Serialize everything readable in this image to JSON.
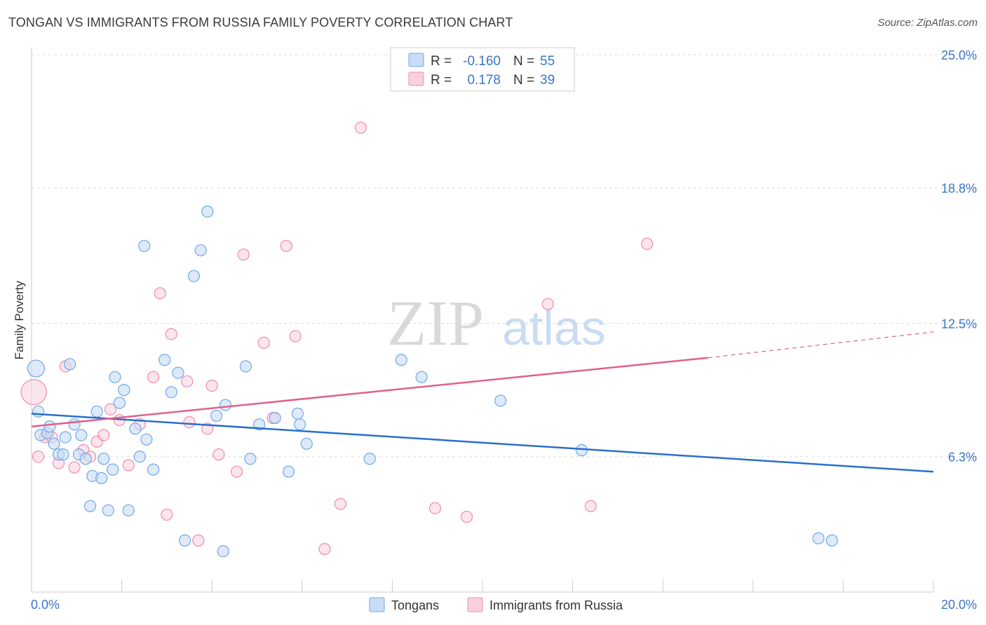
{
  "title": "TONGAN VS IMMIGRANTS FROM RUSSIA FAMILY POVERTY CORRELATION CHART",
  "source": "Source: ZipAtlas.com",
  "watermark": {
    "zip": "ZIP",
    "atlas": "atlas"
  },
  "colors": {
    "tongans": "#6fa8e8",
    "tongans_fill": "#c8dcf5",
    "tongans_line": "#2a6fcc",
    "russia": "#f08cab",
    "russia_fill": "#fad0de",
    "russia_line": "#e0608c",
    "axis_text": "#3a76c8",
    "grid": "#dddddd"
  },
  "legend_top": {
    "rows": [
      {
        "r_label": "R = ",
        "r_value": "-0.160",
        "n_label": "N = ",
        "n_value": "55"
      },
      {
        "r_label": "R = ",
        "r_value": "0.178",
        "n_label": "N = ",
        "n_value": "39"
      }
    ]
  },
  "legend_bottom": {
    "items": [
      "Tongans",
      "Immigrants from Russia"
    ]
  },
  "chart_data": {
    "type": "scatter",
    "title": "TONGAN VS IMMIGRANTS FROM RUSSIA FAMILY POVERTY CORRELATION CHART",
    "xlabel": "",
    "ylabel": "Family Poverty",
    "xlim": [
      0,
      20
    ],
    "ylim": [
      0,
      25.0
    ],
    "x_tick_labels": [
      "0.0%",
      "20.0%"
    ],
    "y_ticks": [
      6.3,
      12.5,
      18.8,
      25.0
    ],
    "y_tick_labels": [
      "6.3%",
      "12.5%",
      "18.8%",
      "25.0%"
    ],
    "grid": "horizontal dashed",
    "legend": "top-center and bottom-center",
    "series": [
      {
        "name": "Tongans",
        "r": -0.16,
        "n": 55,
        "trend": {
          "x": [
            0,
            20
          ],
          "y": [
            8.3,
            5.6
          ]
        },
        "points": [
          [
            0.1,
            10.4
          ],
          [
            0.15,
            8.4
          ],
          [
            0.2,
            7.3
          ],
          [
            0.35,
            7.4
          ],
          [
            0.4,
            7.7
          ],
          [
            0.5,
            6.9
          ],
          [
            0.6,
            6.4
          ],
          [
            0.7,
            6.4
          ],
          [
            0.75,
            7.2
          ],
          [
            0.85,
            10.6
          ],
          [
            0.95,
            7.8
          ],
          [
            1.05,
            6.4
          ],
          [
            1.1,
            7.3
          ],
          [
            1.2,
            6.2
          ],
          [
            1.3,
            4.0
          ],
          [
            1.35,
            5.4
          ],
          [
            1.45,
            8.4
          ],
          [
            1.55,
            5.3
          ],
          [
            1.6,
            6.2
          ],
          [
            1.7,
            3.8
          ],
          [
            1.8,
            5.7
          ],
          [
            1.85,
            10.0
          ],
          [
            1.95,
            8.8
          ],
          [
            2.05,
            9.4
          ],
          [
            2.15,
            3.8
          ],
          [
            2.3,
            7.6
          ],
          [
            2.4,
            6.3
          ],
          [
            2.5,
            16.1
          ],
          [
            2.55,
            7.1
          ],
          [
            2.7,
            5.7
          ],
          [
            2.95,
            10.8
          ],
          [
            3.1,
            9.3
          ],
          [
            3.25,
            10.2
          ],
          [
            3.4,
            2.4
          ],
          [
            3.6,
            14.7
          ],
          [
            3.75,
            15.9
          ],
          [
            3.9,
            17.7
          ],
          [
            4.1,
            8.2
          ],
          [
            4.25,
            1.9
          ],
          [
            4.3,
            8.7
          ],
          [
            4.75,
            10.5
          ],
          [
            4.85,
            6.2
          ],
          [
            5.05,
            7.8
          ],
          [
            5.4,
            8.1
          ],
          [
            5.7,
            5.6
          ],
          [
            5.9,
            8.3
          ],
          [
            5.95,
            7.8
          ],
          [
            6.1,
            6.9
          ],
          [
            7.5,
            6.2
          ],
          [
            8.2,
            10.8
          ],
          [
            8.65,
            10.0
          ],
          [
            10.4,
            8.9
          ],
          [
            12.2,
            6.6
          ],
          [
            17.45,
            2.5
          ],
          [
            17.75,
            2.4
          ]
        ]
      },
      {
        "name": "Immigrants from Russia",
        "r": 0.178,
        "n": 39,
        "trend": {
          "x": [
            0,
            15
          ],
          "y": [
            7.7,
            10.9
          ]
        },
        "trend_dashed": {
          "x": [
            15,
            20
          ],
          "y": [
            10.9,
            12.1
          ]
        },
        "points": [
          [
            0.05,
            9.3
          ],
          [
            0.3,
            7.2
          ],
          [
            0.45,
            7.2
          ],
          [
            0.6,
            6.0
          ],
          [
            0.75,
            10.5
          ],
          [
            0.95,
            5.8
          ],
          [
            1.15,
            6.6
          ],
          [
            1.3,
            6.3
          ],
          [
            1.45,
            7.0
          ],
          [
            1.6,
            7.3
          ],
          [
            1.75,
            8.5
          ],
          [
            1.95,
            8.0
          ],
          [
            2.15,
            5.9
          ],
          [
            2.4,
            7.8
          ],
          [
            2.7,
            10.0
          ],
          [
            2.85,
            13.9
          ],
          [
            3.0,
            3.6
          ],
          [
            3.1,
            12.0
          ],
          [
            3.45,
            9.8
          ],
          [
            3.5,
            7.9
          ],
          [
            3.7,
            2.4
          ],
          [
            3.9,
            7.6
          ],
          [
            4.0,
            9.6
          ],
          [
            4.15,
            6.4
          ],
          [
            4.55,
            5.6
          ],
          [
            4.7,
            15.7
          ],
          [
            5.15,
            11.6
          ],
          [
            5.35,
            8.1
          ],
          [
            5.65,
            16.1
          ],
          [
            5.85,
            11.9
          ],
          [
            6.5,
            2.0
          ],
          [
            6.85,
            4.1
          ],
          [
            7.3,
            21.6
          ],
          [
            8.95,
            3.9
          ],
          [
            9.65,
            3.5
          ],
          [
            11.45,
            13.4
          ],
          [
            12.4,
            4.0
          ],
          [
            13.65,
            16.2
          ],
          [
            0.15,
            6.3
          ]
        ]
      }
    ]
  }
}
